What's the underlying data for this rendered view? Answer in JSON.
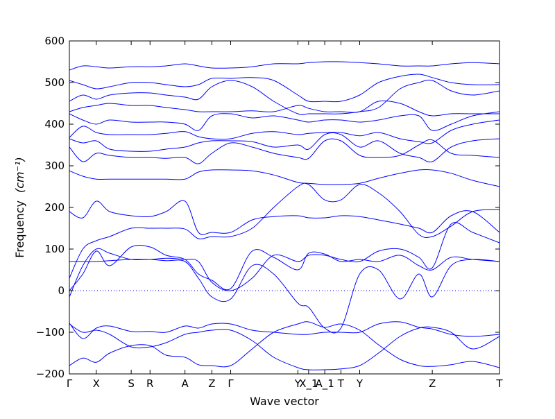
{
  "chart_data": {
    "type": "line",
    "title": "",
    "xlabel": "Wave vector",
    "ylabel": "Frequency",
    "ylabel_unit": "(cm⁻¹)",
    "ylim": [
      -200,
      600
    ],
    "yticks": [
      -200,
      -100,
      0,
      100,
      200,
      300,
      400,
      500,
      600
    ],
    "ytick_labels": [
      "−200",
      "−100",
      "0",
      "100",
      "200",
      "300",
      "400",
      "500",
      "600"
    ],
    "xlim": [
      0,
      16
    ],
    "xticks": [
      {
        "x": 0,
        "label": "Γ"
      },
      {
        "x": 1,
        "label": "X"
      },
      {
        "x": 2.3,
        "label": "S"
      },
      {
        "x": 3,
        "label": "R"
      },
      {
        "x": 4.3,
        "label": "A"
      },
      {
        "x": 5.3,
        "label": "Z"
      },
      {
        "x": 6,
        "label": "Γ"
      },
      {
        "x": 8.5,
        "label": "Y"
      },
      {
        "x": 8.9,
        "label": "X_1"
      },
      {
        "x": 9.5,
        "label": "A_1"
      },
      {
        "x": 10.1,
        "label": "T"
      },
      {
        "x": 10.8,
        "label": "Y"
      },
      {
        "x": 13.5,
        "label": "Z"
      },
      {
        "x": 16,
        "label": "T"
      }
    ],
    "zero_line": true,
    "grid": false,
    "series_color": "#0000ff",
    "x": [
      0,
      0.5,
      1,
      1.5,
      2.3,
      3,
      3.6,
      4.3,
      4.8,
      5.3,
      6,
      6.8,
      7.6,
      8.5,
      8.9,
      9.5,
      10.1,
      10.8,
      11.5,
      12.3,
      13,
      13.5,
      14.2,
      15,
      16
    ],
    "series": [
      {
        "values": [
          -180,
          -162,
          -172,
          -150,
          -132,
          -132,
          -155,
          -160,
          -178,
          -180,
          -180,
          -140,
          -100,
          -80,
          -75,
          -88,
          -80,
          -95,
          -130,
          -165,
          -180,
          -182,
          -178,
          -170,
          -185
        ]
      },
      {
        "values": [
          -80,
          -100,
          -95,
          -105,
          -135,
          -135,
          -125,
          -105,
          -100,
          -95,
          -95,
          -120,
          -160,
          -185,
          -190,
          -190,
          -188,
          -180,
          -150,
          -110,
          -90,
          -88,
          -100,
          -140,
          -110
        ]
      },
      {
        "values": [
          -78,
          -115,
          -90,
          -85,
          -98,
          -98,
          -100,
          -85,
          -90,
          -80,
          -80,
          -95,
          -100,
          -105,
          -105,
          -100,
          -100,
          -100,
          -80,
          -75,
          -88,
          -92,
          -105,
          -110,
          -105
        ]
      },
      {
        "values": [
          -15,
          60,
          100,
          90,
          75,
          75,
          72,
          70,
          30,
          -15,
          -20,
          60,
          40,
          -30,
          -40,
          -90,
          -90,
          40,
          50,
          -20,
          40,
          -15,
          60,
          75,
          70
        ]
      },
      {
        "values": [
          0,
          40,
          95,
          60,
          105,
          105,
          85,
          75,
          40,
          25,
          5,
          95,
          80,
          50,
          90,
          88,
          70,
          75,
          70,
          85,
          60,
          50,
          80,
          75,
          70
        ]
      },
      {
        "values": [
          70,
          70,
          70,
          72,
          75,
          75,
          78,
          75,
          70,
          20,
          0,
          30,
          85,
          70,
          85,
          85,
          75,
          70,
          95,
          100,
          80,
          55,
          160,
          140,
          115
        ]
      },
      {
        "values": [
          30,
          100,
          120,
          130,
          150,
          150,
          150,
          148,
          125,
          130,
          130,
          150,
          200,
          250,
          255,
          218,
          218,
          255,
          235,
          190,
          135,
          130,
          155,
          190,
          195
        ]
      },
      {
        "values": [
          190,
          175,
          215,
          190,
          180,
          178,
          190,
          215,
          140,
          140,
          140,
          170,
          178,
          180,
          175,
          175,
          180,
          178,
          170,
          160,
          150,
          140,
          180,
          190,
          140
        ]
      },
      {
        "values": [
          288,
          275,
          268,
          268,
          268,
          268,
          268,
          268,
          285,
          290,
          290,
          288,
          278,
          260,
          258,
          255,
          255,
          258,
          270,
          282,
          290,
          290,
          282,
          265,
          250
        ]
      },
      {
        "values": [
          345,
          310,
          330,
          325,
          320,
          320,
          318,
          320,
          305,
          330,
          355,
          345,
          330,
          320,
          318,
          360,
          360,
          325,
          320,
          325,
          350,
          362,
          330,
          325,
          320
        ]
      },
      {
        "values": [
          365,
          355,
          360,
          340,
          335,
          335,
          340,
          345,
          355,
          360,
          360,
          358,
          345,
          350,
          340,
          375,
          375,
          345,
          360,
          330,
          320,
          310,
          345,
          360,
          365
        ]
      },
      {
        "values": [
          368,
          395,
          380,
          375,
          375,
          375,
          378,
          382,
          370,
          365,
          365,
          378,
          382,
          375,
          378,
          380,
          380,
          372,
          380,
          365,
          358,
          355,
          385,
          400,
          410
        ]
      },
      {
        "values": [
          425,
          410,
          400,
          410,
          405,
          405,
          405,
          400,
          385,
          420,
          425,
          415,
          420,
          410,
          405,
          410,
          410,
          405,
          410,
          420,
          420,
          385,
          400,
          420,
          430
        ]
      },
      {
        "values": [
          430,
          440,
          445,
          450,
          445,
          445,
          440,
          435,
          430,
          430,
          430,
          432,
          430,
          445,
          438,
          430,
          430,
          430,
          455,
          450,
          430,
          420,
          425,
          425,
          425
        ]
      },
      {
        "values": [
          455,
          470,
          460,
          470,
          475,
          475,
          470,
          465,
          460,
          490,
          505,
          490,
          455,
          425,
          425,
          425,
          425,
          430,
          440,
          485,
          500,
          505,
          480,
          470,
          480
        ]
      },
      {
        "values": [
          505,
          495,
          485,
          490,
          500,
          500,
          495,
          490,
          495,
          510,
          510,
          512,
          505,
          470,
          455,
          455,
          455,
          470,
          500,
          515,
          520,
          512,
          500,
          495,
          495
        ]
      },
      {
        "values": [
          530,
          540,
          538,
          535,
          538,
          538,
          540,
          545,
          540,
          535,
          535,
          538,
          545,
          545,
          548,
          550,
          550,
          548,
          545,
          540,
          540,
          540,
          545,
          548,
          545
        ]
      }
    ]
  }
}
